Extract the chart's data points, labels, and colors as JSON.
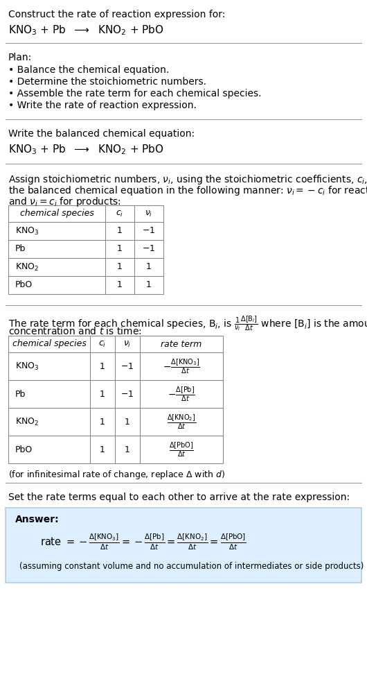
{
  "bg_color": "#ffffff",
  "text_color": "#000000",
  "title_text": "Construct the rate of reaction expression for:",
  "reaction_equation": "KNO$_3$ + Pb  $\\longrightarrow$  KNO$_2$ + PbO",
  "plan_header": "Plan:",
  "plan_items": [
    "• Balance the chemical equation.",
    "• Determine the stoichiometric numbers.",
    "• Assemble the rate term for each chemical species.",
    "• Write the rate of reaction expression."
  ],
  "balanced_header": "Write the balanced chemical equation:",
  "balanced_eq": "KNO$_3$ + Pb  $\\longrightarrow$  KNO$_2$ + PbO",
  "stoich_intro_1": "Assign stoichiometric numbers, $\\nu_i$, using the stoichiometric coefficients, $c_i$, from",
  "stoich_intro_2": "the balanced chemical equation in the following manner: $\\nu_i = -c_i$ for reactants",
  "stoich_intro_3": "and $\\nu_i = c_i$ for products:",
  "table1_headers": [
    "chemical species",
    "$c_i$",
    "$\\nu_i$"
  ],
  "table1_rows": [
    [
      "KNO$_3$",
      "1",
      "$-1$"
    ],
    [
      "Pb",
      "1",
      "$-1$"
    ],
    [
      "KNO$_2$",
      "1",
      "1"
    ],
    [
      "PbO",
      "1",
      "1"
    ]
  ],
  "rate_term_intro_1": "The rate term for each chemical species, B$_i$, is $\\frac{1}{\\nu_i}\\frac{\\Delta[\\mathrm{B}_i]}{\\Delta t}$ where [B$_i$] is the amount",
  "rate_term_intro_2": "concentration and $t$ is time:",
  "table2_headers": [
    "chemical species",
    "$c_i$",
    "$\\nu_i$",
    "rate term"
  ],
  "table2_rows": [
    [
      "KNO$_3$",
      "1",
      "$-1$",
      "$-\\frac{\\Delta[\\mathrm{KNO_3}]}{\\Delta t}$"
    ],
    [
      "Pb",
      "1",
      "$-1$",
      "$-\\frac{\\Delta[\\mathrm{Pb}]}{\\Delta t}$"
    ],
    [
      "KNO$_2$",
      "1",
      "1",
      "$\\frac{\\Delta[\\mathrm{KNO_2}]}{\\Delta t}$"
    ],
    [
      "PbO",
      "1",
      "1",
      "$\\frac{\\Delta[\\mathrm{PbO}]}{\\Delta t}$"
    ]
  ],
  "infinitesimal_note": "(for infinitesimal rate of change, replace $\\Delta$ with $d$)",
  "rate_set_text": "Set the rate terms equal to each other to arrive at the rate expression:",
  "answer_box_color": "#ddeeff",
  "answer_box_border": "#b0cce0",
  "answer_header": "Answer:",
  "answer_rate_expr": "rate $= -\\frac{\\Delta[\\mathrm{KNO_3}]}{\\Delta t} = -\\frac{\\Delta[\\mathrm{Pb}]}{\\Delta t} = \\frac{\\Delta[\\mathrm{KNO_2}]}{\\Delta t} = \\frac{\\Delta[\\mathrm{PbO}]}{\\Delta t}$",
  "answer_note": "(assuming constant volume and no accumulation of intermediates or side products)"
}
